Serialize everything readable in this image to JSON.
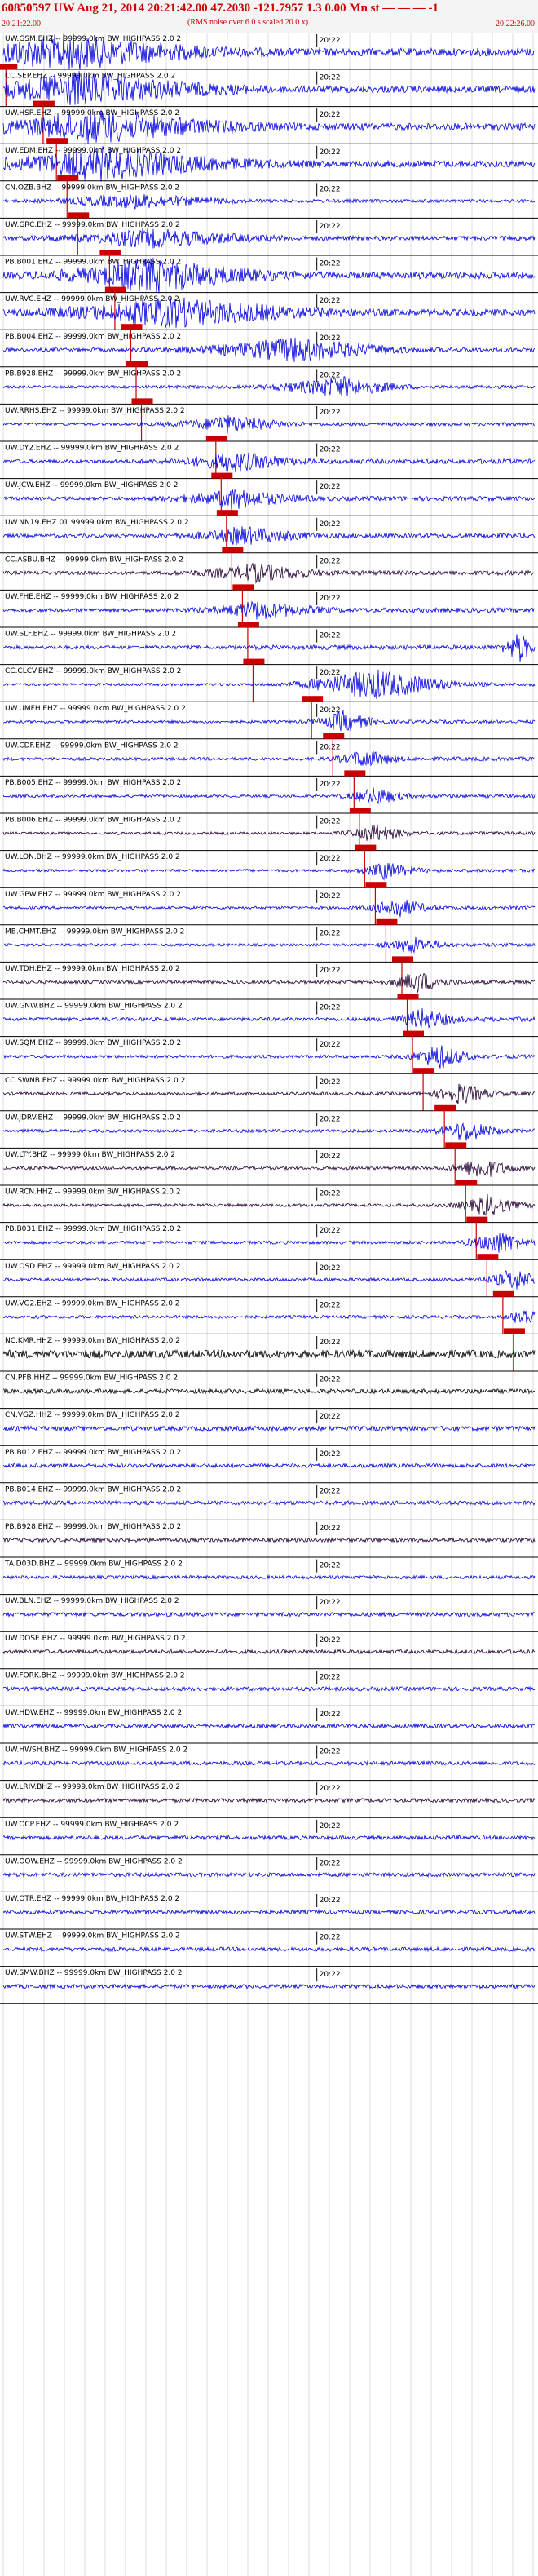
{
  "header": {
    "title": "60850597 UW Aug 21, 2014 20:21:42.00    47.2030 -121.7957   1.3 0.00 Mn st  — — — -1",
    "subtitle": "(RMS noise over 6.0 s scaled 20.0 x)",
    "start_time": "20:21:22.00",
    "end_time": "20:22:26.00"
  },
  "chart_data": {
    "type": "line",
    "title": "60850597 UW Aug 21, 2014 20:21:42.00    47.2030 -121.7957   1.3 0.00 Mn st  — — — -1",
    "subtitle": "(RMS noise over 6.0 s scaled 20.0 x)",
    "x_start": "20:21:22.00",
    "x_end": "20:22:26.00",
    "minute_mark_label": "20:22",
    "grid": "vertical, 4 s spacing",
    "colors": {
      "trace": "#0000dd",
      "dark_trace": "#220033",
      "pick": "#cc0000",
      "grid": "#bbbbbb",
      "marker": "#000000"
    },
    "stations": [
      {
        "label": "UW.GSM.EHZ -- 99999.0km BW_HIGHPASS 2.0 2",
        "pick": 0.005,
        "amp": 0.7,
        "event": [
          0.12,
          0.45,
          0.95
        ],
        "color": "blue"
      },
      {
        "label": "CC.SEP.EHZ -- 99999.0km BW_HIGHPASS 2.0 2",
        "pick": 0.075,
        "amp": 0.6,
        "event": [
          0.14,
          0.45,
          0.95
        ],
        "color": "blue"
      },
      {
        "label": "UW.HSR.EHZ -- 99999.0km BW_HIGHPASS 2.0 2",
        "pick": 0.1,
        "amp": 0.6,
        "event": [
          0.17,
          0.45,
          0.9
        ],
        "color": "blue"
      },
      {
        "label": "UW.EDM.EHZ -- 99999.0km BW_HIGHPASS 2.0 2",
        "pick": 0.12,
        "amp": 0.6,
        "event": [
          0.18,
          0.45,
          0.9
        ],
        "color": "blue"
      },
      {
        "label": "CN.OZB.BHZ -- 99999.0km BW_HIGHPASS 2.0 2",
        "pick": 0.14,
        "amp": 0.3,
        "event": [
          0.25,
          0.3,
          0.4
        ],
        "color": "blue"
      },
      {
        "label": "UW.GRC.EHZ -- 99999.0km BW_HIGHPASS 2.0 2",
        "pick": 0.2,
        "amp": 0.4,
        "event": [
          0.28,
          0.35,
          0.5
        ],
        "color": "blue"
      },
      {
        "label": "PB.B001.EHZ -- 99999.0km BW_HIGHPASS 2.0 2",
        "pick": 0.21,
        "amp": 0.6,
        "event": [
          0.28,
          0.35,
          0.95
        ],
        "color": "blue"
      },
      {
        "label": "UW.RVC.EHZ -- 99999.0km BW_HIGHPASS 2.0 2",
        "pick": 0.24,
        "amp": 0.6,
        "event": [
          0.32,
          0.45,
          0.8
        ],
        "color": "blue"
      },
      {
        "label": "PB.B004.EHZ -- 99999.0km BW_HIGHPASS 2.0 2",
        "pick": 0.25,
        "amp": 0.4,
        "event": [
          0.55,
          0.3,
          0.7
        ],
        "color": "blue"
      },
      {
        "label": "PB.B928.EHZ -- 99999.0km BW_HIGHPASS 2.0 2",
        "pick": 0.26,
        "amp": 0.3,
        "event": [
          0.63,
          0.2,
          0.6
        ],
        "color": "blue"
      },
      {
        "label": "UW.RRHS.EHZ -- 99999.0km BW_HIGHPASS 2.0 2",
        "pick": 0.4,
        "amp": 0.3,
        "event": [
          0.42,
          0.2,
          0.5
        ],
        "color": "blue"
      },
      {
        "label": "UW.DY2.EHZ -- 99999.0km BW_HIGHPASS 2.0 2",
        "pick": 0.41,
        "amp": 0.4,
        "event": [
          0.43,
          0.2,
          0.6
        ],
        "color": "blue"
      },
      {
        "label": "UW.JCW.EHZ -- 99999.0km BW_HIGHPASS 2.0 2",
        "pick": 0.42,
        "amp": 0.4,
        "event": [
          0.43,
          0.2,
          0.6
        ],
        "color": "blue"
      },
      {
        "label": "UW.NN19.EHZ.01 99999.0km BW_HIGHPASS 2.0 2",
        "pick": 0.43,
        "amp": 0.4,
        "event": [
          0.45,
          0.2,
          0.5
        ],
        "color": "blue"
      },
      {
        "label": "CC.ASBU.BHZ -- 99999.0km BW_HIGHPASS 2.0 2",
        "pick": 0.45,
        "amp": 0.4,
        "event": [
          0.47,
          0.2,
          0.5
        ],
        "color": "dark"
      },
      {
        "label": "UW.FHE.EHZ -- 99999.0km BW_HIGHPASS 2.0 2",
        "pick": 0.46,
        "amp": 0.4,
        "event": [
          0.48,
          0.2,
          0.5
        ],
        "color": "blue"
      },
      {
        "label": "UW.SLF.EHZ -- 99999.0km BW_HIGHPASS 2.0 2",
        "pick": 0.47,
        "amp": 0.4,
        "event": [
          0.97,
          0.05,
          0.9
        ],
        "color": "blue"
      },
      {
        "label": "CC.CLCV.EHZ -- 99999.0km BW_HIGHPASS 2.0 2",
        "pick": 0.58,
        "amp": 0.3,
        "event": [
          0.7,
          0.25,
          0.9
        ],
        "color": "blue"
      },
      {
        "label": "UW.UMFH.EHZ -- 99999.0km BW_HIGHPASS 2.0 2",
        "pick": 0.62,
        "amp": 0.3,
        "event": [
          0.64,
          0.1,
          0.6
        ],
        "color": "blue"
      },
      {
        "label": "UW.CDF.EHZ -- 99999.0km BW_HIGHPASS 2.0 2",
        "pick": 0.66,
        "amp": 0.35,
        "event": [
          0.68,
          0.1,
          0.5
        ],
        "color": "blue"
      },
      {
        "label": "PB.B005.EHZ -- 99999.0km BW_HIGHPASS 2.0 2",
        "pick": 0.67,
        "amp": 0.3,
        "event": [
          0.7,
          0.1,
          0.5
        ],
        "color": "blue"
      },
      {
        "label": "PB.B006.EHZ -- 99999.0km BW_HIGHPASS 2.0 2",
        "pick": 0.68,
        "amp": 0.3,
        "event": [
          0.7,
          0.1,
          0.5
        ],
        "color": "dark"
      },
      {
        "label": "UW.LON.BHZ -- 99999.0km BW_HIGHPASS 2.0 2",
        "pick": 0.7,
        "amp": 0.3,
        "event": [
          0.72,
          0.1,
          0.5
        ],
        "color": "blue"
      },
      {
        "label": "UW.GPW.EHZ -- 99999.0km BW_HIGHPASS 2.0 2",
        "pick": 0.72,
        "amp": 0.3,
        "event": [
          0.74,
          0.1,
          0.6
        ],
        "color": "blue"
      },
      {
        "label": "MB.CHMT.EHZ -- 99999.0km BW_HIGHPASS 2.0 2",
        "pick": 0.75,
        "amp": 0.3,
        "event": [
          0.77,
          0.1,
          0.5
        ],
        "color": "blue"
      },
      {
        "label": "UW.TDH.EHZ -- 99999.0km BW_HIGHPASS 2.0 2",
        "pick": 0.76,
        "amp": 0.35,
        "event": [
          0.78,
          0.1,
          0.6
        ],
        "color": "dark"
      },
      {
        "label": "UW.GNW.BHZ -- 99999.0km BW_HIGHPASS 2.0 2",
        "pick": 0.77,
        "amp": 0.4,
        "event": [
          0.79,
          0.1,
          0.6
        ],
        "color": "blue"
      },
      {
        "label": "UW.SQM.EHZ -- 99999.0km BW_HIGHPASS 2.0 2",
        "pick": 0.79,
        "amp": 0.35,
        "event": [
          0.82,
          0.1,
          0.7
        ],
        "color": "blue"
      },
      {
        "label": "CC.SWNB.EHZ -- 99999.0km BW_HIGHPASS 2.0 2",
        "pick": 0.83,
        "amp": 0.35,
        "event": [
          0.86,
          0.1,
          0.6
        ],
        "color": "dark"
      },
      {
        "label": "UW.JDRV.EHZ -- 99999.0km BW_HIGHPASS 2.0 2",
        "pick": 0.85,
        "amp": 0.35,
        "event": [
          0.87,
          0.1,
          0.6
        ],
        "color": "blue"
      },
      {
        "label": "UW.LTY.BHZ -- 99999.0km BW_HIGHPASS 2.0 2",
        "pick": 0.87,
        "amp": 0.35,
        "event": [
          0.9,
          0.1,
          0.6
        ],
        "color": "dark"
      },
      {
        "label": "UW.RCN.HHZ -- 99999.0km BW_HIGHPASS 2.0 2",
        "pick": 0.89,
        "amp": 0.35,
        "event": [
          0.91,
          0.1,
          0.6
        ],
        "color": "dark"
      },
      {
        "label": "PB.B031.EHZ -- 99999.0km BW_HIGHPASS 2.0 2",
        "pick": 0.91,
        "amp": 0.35,
        "event": [
          0.93,
          0.1,
          0.7
        ],
        "color": "blue"
      },
      {
        "label": "UW.OSD.EHZ -- 99999.0km BW_HIGHPASS 2.0 2",
        "pick": 0.94,
        "amp": 0.35,
        "event": [
          0.96,
          0.1,
          0.6
        ],
        "color": "blue"
      },
      {
        "label": "UW.VG2.EHZ -- 99999.0km BW_HIGHPASS 2.0 2",
        "pick": 0.96,
        "amp": 0.35,
        "event": [
          0.98,
          0.05,
          0.6
        ],
        "color": "blue"
      },
      {
        "label": "NC.KMR.HHZ -- 99999.0km BW_HIGHPASS 2.0 2",
        "pick": null,
        "amp": 0.7,
        "event": null,
        "color": "black"
      },
      {
        "label": "CN.PFB.HHZ -- 99999.0km BW_HIGHPASS 2.0 2",
        "pick": null,
        "amp": 0.4,
        "event": null,
        "color": "black"
      },
      {
        "label": "CN.VGZ.HHZ -- 99999.0km BW_HIGHPASS 2.0 2",
        "pick": null,
        "amp": 0.4,
        "event": null,
        "color": "blue"
      },
      {
        "label": "PB.B012.EHZ -- 99999.0km BW_HIGHPASS 2.0 2",
        "pick": null,
        "amp": 0.35,
        "event": null,
        "color": "blue"
      },
      {
        "label": "PB.B014.EHZ -- 99999.0km BW_HIGHPASS 2.0 2",
        "pick": null,
        "amp": 0.35,
        "event": null,
        "color": "blue"
      },
      {
        "label": "PB.B928.EHZ -- 99999.0km BW_HIGHPASS 2.0 2",
        "pick": null,
        "amp": 0.35,
        "event": null,
        "color": "dark"
      },
      {
        "label": "TA.D03D.BHZ -- 99999.0km BW_HIGHPASS 2.0 2",
        "pick": null,
        "amp": 0.3,
        "event": null,
        "color": "blue"
      },
      {
        "label": "UW.BLN.EHZ -- 99999.0km BW_HIGHPASS 2.0 2",
        "pick": null,
        "amp": 0.35,
        "event": null,
        "color": "blue"
      },
      {
        "label": "UW.DOSE.BHZ -- 99999.0km BW_HIGHPASS 2.0 2",
        "pick": null,
        "amp": 0.35,
        "event": null,
        "color": "dark"
      },
      {
        "label": "UW.FORK.BHZ -- 99999.0km BW_HIGHPASS 2.0 2",
        "pick": null,
        "amp": 0.35,
        "event": null,
        "color": "blue"
      },
      {
        "label": "UW.HDW.EHZ -- 99999.0km BW_HIGHPASS 2.0 2",
        "pick": null,
        "amp": 0.35,
        "event": null,
        "color": "blue"
      },
      {
        "label": "UW.HWSH.BHZ -- 99999.0km BW_HIGHPASS 2.0 2",
        "pick": null,
        "amp": 0.35,
        "event": null,
        "color": "blue"
      },
      {
        "label": "UW.LRIV.BHZ -- 99999.0km BW_HIGHPASS 2.0 2",
        "pick": null,
        "amp": 0.35,
        "event": null,
        "color": "dark"
      },
      {
        "label": "UW.OCP.EHZ -- 99999.0km BW_HIGHPASS 2.0 2",
        "pick": null,
        "amp": 0.35,
        "event": null,
        "color": "blue"
      },
      {
        "label": "UW.OOW.EHZ -- 99999.0km BW_HIGHPASS 2.0 2",
        "pick": null,
        "amp": 0.35,
        "event": null,
        "color": "blue"
      },
      {
        "label": "UW.OTR.EHZ -- 99999.0km BW_HIGHPASS 2.0 2",
        "pick": null,
        "amp": 0.35,
        "event": null,
        "color": "blue"
      },
      {
        "label": "UW.STW.EHZ -- 99999.0km BW_HIGHPASS 2.0 2",
        "pick": null,
        "amp": 0.35,
        "event": null,
        "color": "blue"
      },
      {
        "label": "UW.SMW.BHZ -- 99999.0km BW_HIGHPASS 2.0 2",
        "pick": null,
        "amp": 0.35,
        "event": null,
        "color": "blue"
      }
    ]
  }
}
